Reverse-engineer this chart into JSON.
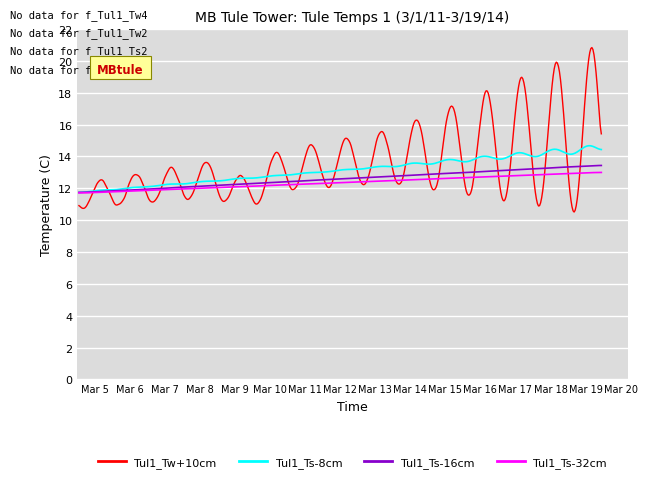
{
  "title": "MB Tule Tower: Tule Temps 1 (3/1/11-3/19/14)",
  "xlabel": "Time",
  "ylabel": "Temperature (C)",
  "ylim": [
    0,
    22
  ],
  "yticks": [
    0,
    2,
    4,
    6,
    8,
    10,
    12,
    14,
    16,
    18,
    20,
    22
  ],
  "background_color": "#dcdcdc",
  "plot_bg_color": "#dcdcdc",
  "fig_bg_color": "#ffffff",
  "grid_color": "#ffffff",
  "line_colors": {
    "Tw": "#ff0000",
    "Ts8": "#00ffff",
    "Ts16": "#8800cc",
    "Ts32": "#ff00ff"
  },
  "legend_labels": [
    "Tul1_Tw+10cm",
    "Tul1_Ts-8cm",
    "Tul1_Ts-16cm",
    "Tul1_Ts-32cm"
  ],
  "no_data_texts": [
    "No data for f_Tul1_Tw4",
    "No data for f_Tul1_Tw2",
    "No data for f_Tul1_Ts2",
    "No data for f_Tul1_Ts3"
  ],
  "annotation_box_text": "MBtule",
  "xlim": [
    4.5,
    20.2
  ],
  "num_points": 500
}
